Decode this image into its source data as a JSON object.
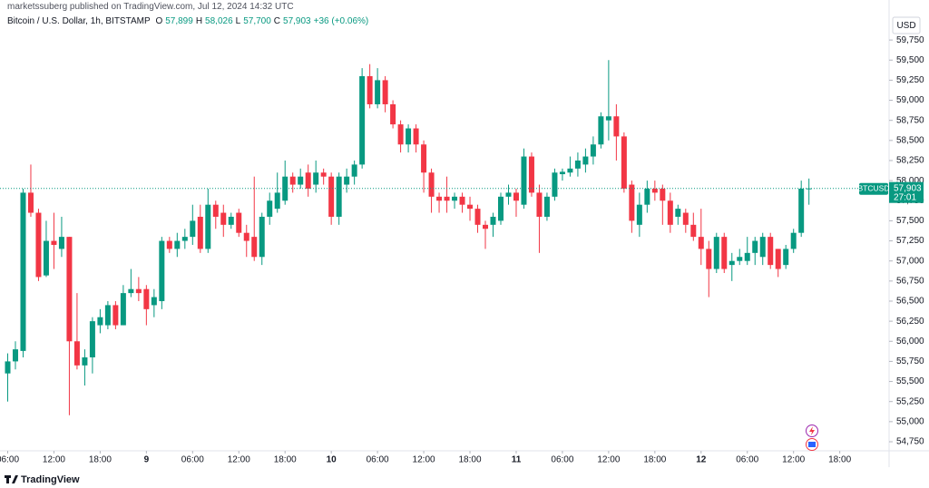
{
  "chart_data": {
    "type": "candlestick",
    "attribution": "marketssuberg published on TradingView.com, Jul 12, 2024 14:32 UTC",
    "title": "Bitcoin / U.S. Dollar, 1h, BITSTAMP",
    "ohlc_fields": [
      {
        "key": "O",
        "value": "57,899"
      },
      {
        "key": "H",
        "value": "58,026"
      },
      {
        "key": "L",
        "value": "57,700"
      },
      {
        "key": "C",
        "value": "57,903"
      }
    ],
    "change": "+36 (+0.06%)",
    "currency": "USD",
    "symbol_tag": "BTCUSD",
    "last_price": {
      "value": 57903,
      "label": "57,903"
    },
    "countdown": "27:01",
    "brand": "TradingView",
    "up_color": "#089981",
    "down_color": "#f23645",
    "open": [
      55600,
      55750,
      55880,
      57850,
      57600,
      56820,
      57250,
      57150,
      57300,
      56000,
      55700,
      55800,
      56200,
      56200,
      56450,
      56200,
      56600,
      56650,
      56650,
      56450,
      56500,
      57250,
      57150,
      57250,
      57300,
      57550,
      57150,
      57700,
      57600,
      57450,
      57600,
      57350,
      57300,
      57050,
      57550,
      57650,
      57750,
      58050,
      57950,
      58100,
      57950,
      58100,
      58050,
      57550,
      57950,
      58050,
      58200,
      59300,
      58950,
      59250,
      58950,
      58700,
      58450,
      58650,
      58450,
      58100,
      57800,
      57800,
      57750,
      57800,
      57700,
      57650,
      57450,
      57450,
      57500,
      57800,
      57850,
      57700,
      58300,
      57850,
      57550,
      57800,
      58080,
      58100,
      58150,
      58200,
      58300,
      58450,
      58750,
      58800,
      58550,
      57950,
      57450,
      57700,
      57900,
      57900,
      57750,
      57550,
      57600,
      57450,
      57300,
      57150,
      56900,
      57300,
      56950,
      57000,
      57000,
      57100,
      57050,
      57300,
      57150,
      56950,
      57150,
      57350,
      57899
    ],
    "high": [
      55850,
      56000,
      57900,
      58200,
      57650,
      57500,
      57600,
      57550,
      57300,
      56600,
      55900,
      56300,
      56400,
      56500,
      56500,
      56700,
      56900,
      56800,
      56700,
      56650,
      57300,
      57300,
      57350,
      57400,
      57700,
      57700,
      57900,
      57750,
      57700,
      57600,
      57650,
      57450,
      58050,
      57600,
      57850,
      58100,
      58250,
      58100,
      58150,
      58200,
      58250,
      58150,
      58100,
      58100,
      58150,
      58250,
      59400,
      59450,
      59400,
      59300,
      59000,
      58750,
      58700,
      58700,
      58500,
      58150,
      57850,
      58050,
      57850,
      57850,
      57800,
      57700,
      57500,
      57600,
      57850,
      57950,
      57900,
      58400,
      58350,
      57950,
      57850,
      58150,
      58150,
      58300,
      58350,
      58400,
      58550,
      58850,
      59500,
      58950,
      58600,
      58000,
      57850,
      58000,
      58000,
      57950,
      57850,
      57700,
      57650,
      57600,
      57650,
      57250,
      57350,
      57350,
      57100,
      57150,
      57300,
      57300,
      57350,
      57350,
      57150,
      57200,
      57400,
      58000,
      58026
    ],
    "low": [
      55250,
      55650,
      55800,
      57550,
      56750,
      56800,
      56900,
      57050,
      55080,
      55650,
      55450,
      55600,
      56100,
      56150,
      56150,
      56200,
      56550,
      56500,
      56200,
      56300,
      56400,
      57100,
      57050,
      57150,
      57200,
      57100,
      57100,
      57400,
      57300,
      57400,
      57300,
      57050,
      57000,
      56950,
      57450,
      57600,
      57700,
      57850,
      57900,
      57800,
      57850,
      57950,
      57450,
      57450,
      57850,
      57950,
      58150,
      58900,
      58900,
      58850,
      58650,
      58350,
      58350,
      58350,
      57850,
      57600,
      57600,
      57600,
      57650,
      57600,
      57500,
      57350,
      57150,
      57300,
      57450,
      57700,
      57550,
      57650,
      57800,
      57100,
      57500,
      57750,
      58000,
      58050,
      58050,
      58100,
      58200,
      58400,
      58500,
      58250,
      57850,
      57350,
      57300,
      57600,
      57750,
      57450,
      57350,
      57450,
      57350,
      57250,
      56950,
      56550,
      56850,
      56850,
      56750,
      56950,
      56950,
      56950,
      56950,
      56900,
      56800,
      56900,
      57100,
      57300,
      57700
    ],
    "close": [
      55750,
      55900,
      57850,
      57600,
      56800,
      57250,
      57200,
      57300,
      56000,
      55700,
      55800,
      56250,
      56300,
      56450,
      56200,
      56600,
      56650,
      56600,
      56400,
      56550,
      57250,
      57150,
      57250,
      57300,
      57500,
      57150,
      57700,
      57550,
      57450,
      57550,
      57350,
      57250,
      57050,
      57550,
      57750,
      57850,
      58050,
      57950,
      58050,
      57900,
      58100,
      58050,
      57550,
      58050,
      58050,
      58200,
      59300,
      58950,
      59250,
      58950,
      58700,
      58450,
      58650,
      58450,
      58100,
      57800,
      57750,
      57750,
      57800,
      57700,
      57650,
      57450,
      57400,
      57550,
      57800,
      57850,
      57750,
      58300,
      57850,
      57550,
      57800,
      58100,
      58110,
      58150,
      58250,
      58300,
      58450,
      58800,
      58800,
      58550,
      57900,
      57500,
      57700,
      57900,
      57850,
      57750,
      57450,
      57650,
      57450,
      57300,
      57150,
      56900,
      57300,
      56900,
      57000,
      57050,
      57100,
      57250,
      57300,
      56950,
      56900,
      57150,
      57350,
      57900,
      57903
    ],
    "xlim": [
      -1,
      114.4
    ],
    "xticks": [
      {
        "value": 0,
        "label": "06:00"
      },
      {
        "value": 6,
        "label": "12:00"
      },
      {
        "value": 12,
        "label": "18:00"
      },
      {
        "value": 18,
        "label": "9"
      },
      {
        "value": 24,
        "label": "06:00"
      },
      {
        "value": 30,
        "label": "12:00"
      },
      {
        "value": 36,
        "label": "18:00"
      },
      {
        "value": 42,
        "label": "10"
      },
      {
        "value": 48,
        "label": "06:00"
      },
      {
        "value": 54,
        "label": "12:00"
      },
      {
        "value": 60,
        "label": "18:00"
      },
      {
        "value": 66,
        "label": "11"
      },
      {
        "value": 72,
        "label": "06:00"
      },
      {
        "value": 78,
        "label": "12:00"
      },
      {
        "value": 84,
        "label": "18:00"
      },
      {
        "value": 90,
        "label": "12"
      },
      {
        "value": 96,
        "label": "06:00"
      },
      {
        "value": 102,
        "label": "12:00"
      },
      {
        "value": 108,
        "label": "18:00"
      }
    ],
    "ylim": [
      54637,
      60248
    ],
    "yticks": [
      {
        "value": 54750,
        "label": "54,750"
      },
      {
        "value": 55000,
        "label": "55,000"
      },
      {
        "value": 55250,
        "label": "55,250"
      },
      {
        "value": 55500,
        "label": "55,500"
      },
      {
        "value": 55750,
        "label": "55,750"
      },
      {
        "value": 56000,
        "label": "56,000"
      },
      {
        "value": 56250,
        "label": "56,250"
      },
      {
        "value": 56500,
        "label": "56,500"
      },
      {
        "value": 56750,
        "label": "56,750"
      },
      {
        "value": 57000,
        "label": "57,000"
      },
      {
        "value": 57250,
        "label": "57,250"
      },
      {
        "value": 57500,
        "label": "57,500"
      },
      {
        "value": 57750,
        "label": "57,750"
      },
      {
        "value": 58000,
        "label": "58,000"
      },
      {
        "value": 58250,
        "label": "58,250"
      },
      {
        "value": 58500,
        "label": "58,500"
      },
      {
        "value": 58750,
        "label": "58,750"
      },
      {
        "value": 59000,
        "label": "59,000"
      },
      {
        "value": 59250,
        "label": "59,250"
      },
      {
        "value": 59500,
        "label": "59,500"
      },
      {
        "value": 59750,
        "label": "59,750"
      }
    ],
    "grid": false
  }
}
